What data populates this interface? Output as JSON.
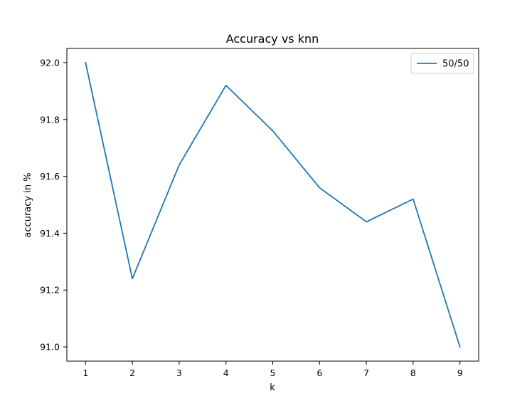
{
  "chart_data": {
    "type": "line",
    "title": "Accuracy vs knn",
    "xlabel": "k",
    "ylabel": "accuracy in %",
    "x": [
      1,
      2,
      3,
      4,
      5,
      6,
      7,
      8,
      9
    ],
    "series": [
      {
        "name": "50/50",
        "values": [
          92.0,
          91.24,
          91.64,
          91.92,
          91.76,
          91.56,
          91.44,
          91.52,
          91.0
        ],
        "color": "#1f77b4"
      }
    ],
    "xticks": [
      "1",
      "2",
      "3",
      "4",
      "5",
      "6",
      "7",
      "8",
      "9"
    ],
    "yticks": [
      "91.0",
      "91.2",
      "91.4",
      "91.6",
      "91.8",
      "92.0"
    ],
    "xlim": [
      0.6,
      9.4
    ],
    "ylim": [
      90.95,
      92.05
    ],
    "grid": false,
    "legend_position": "top-right"
  }
}
